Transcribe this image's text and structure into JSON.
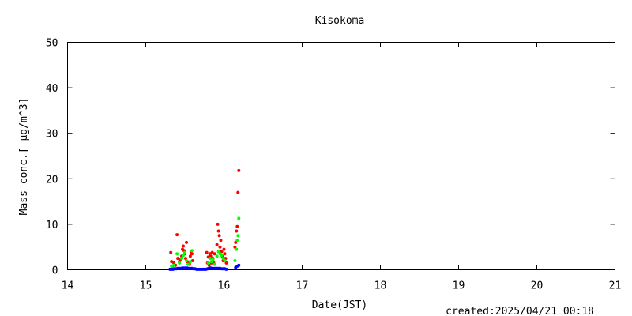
{
  "chart_data": {
    "type": "scatter",
    "title": "Kisokoma",
    "xlabel": "Date(JST)",
    "ylabel": "Mass conc.[ μg/m^3]",
    "footer": "created:2025/04/21 00:18",
    "xlim": [
      14,
      21
    ],
    "ylim": [
      0,
      50
    ],
    "xticks": [
      "14",
      "15",
      "16",
      "17",
      "18",
      "19",
      "20",
      "21"
    ],
    "yticks": [
      "0",
      "10",
      "20",
      "30",
      "40",
      "50"
    ],
    "grid": false,
    "series": [
      {
        "color": "#ff0000",
        "x": [
          15.32,
          15.33,
          15.34,
          15.36,
          15.38,
          15.4,
          15.41,
          15.43,
          15.44,
          15.46,
          15.47,
          15.48,
          15.49,
          15.5,
          15.51,
          15.52,
          15.53,
          15.55,
          15.56,
          15.57,
          15.58,
          15.59,
          15.6,
          15.78,
          15.79,
          15.8,
          15.81,
          15.82,
          15.83,
          15.84,
          15.85,
          15.86,
          15.87,
          15.88,
          15.91,
          15.92,
          15.93,
          15.94,
          15.95,
          15.96,
          15.97,
          15.98,
          15.99,
          16.0,
          16.01,
          16.02,
          16.03,
          16.14,
          16.15,
          16.16,
          16.17,
          16.18,
          16.19
        ],
        "y": [
          3.8,
          1.8,
          0.8,
          1.5,
          1.0,
          7.7,
          2.5,
          1.8,
          2.2,
          3.0,
          4.5,
          5.2,
          4.2,
          3.5,
          2.5,
          6.0,
          1.8,
          1.5,
          1.2,
          3.0,
          4.0,
          3.5,
          2.0,
          3.8,
          1.5,
          2.8,
          1.0,
          3.5,
          3.0,
          1.5,
          3.8,
          2.5,
          1.5,
          3.5,
          5.5,
          10.0,
          8.5,
          7.5,
          5.0,
          6.5,
          4.0,
          3.0,
          2.0,
          4.5,
          3.5,
          2.5,
          1.5,
          5.0,
          6.0,
          8.5,
          9.5,
          17.0,
          21.8
        ]
      },
      {
        "color": "#00ff00",
        "x": [
          15.33,
          15.36,
          15.4,
          15.43,
          15.46,
          15.48,
          15.5,
          15.52,
          15.54,
          15.57,
          15.59,
          15.8,
          15.82,
          15.84,
          15.86,
          15.88,
          15.91,
          15.93,
          15.95,
          15.97,
          15.99,
          16.01,
          16.14,
          16.16,
          16.17,
          16.18,
          16.19
        ],
        "y": [
          0.8,
          1.0,
          3.5,
          1.5,
          2.5,
          3.2,
          3.8,
          2.0,
          1.2,
          1.8,
          4.2,
          1.5,
          2.5,
          1.8,
          2.2,
          1.2,
          3.0,
          4.0,
          3.5,
          3.2,
          2.5,
          2.0,
          2.0,
          4.5,
          6.5,
          7.5,
          11.3
        ]
      },
      {
        "color": "#0000ff",
        "x": [
          15.31,
          15.33,
          15.35,
          15.37,
          15.39,
          15.41,
          15.43,
          15.45,
          15.47,
          15.49,
          15.51,
          15.53,
          15.55,
          15.57,
          15.59,
          15.61,
          15.63,
          15.65,
          15.67,
          15.69,
          15.71,
          15.73,
          15.75,
          15.77,
          15.79,
          15.81,
          15.83,
          15.85,
          15.87,
          15.89,
          15.91,
          15.93,
          15.95,
          15.97,
          15.99,
          16.01,
          16.03,
          16.15,
          16.17,
          16.19
        ],
        "y": [
          0.1,
          0.1,
          0.1,
          0.2,
          0.2,
          0.3,
          0.3,
          0.3,
          0.4,
          0.4,
          0.4,
          0.4,
          0.3,
          0.3,
          0.3,
          0.2,
          0.2,
          0.1,
          0.1,
          0.1,
          0.1,
          0.1,
          0.1,
          0.1,
          0.2,
          0.3,
          0.4,
          0.3,
          0.3,
          0.3,
          0.3,
          0.3,
          0.3,
          0.2,
          0.2,
          0.2,
          0.1,
          0.5,
          0.8,
          1.0
        ]
      }
    ]
  }
}
